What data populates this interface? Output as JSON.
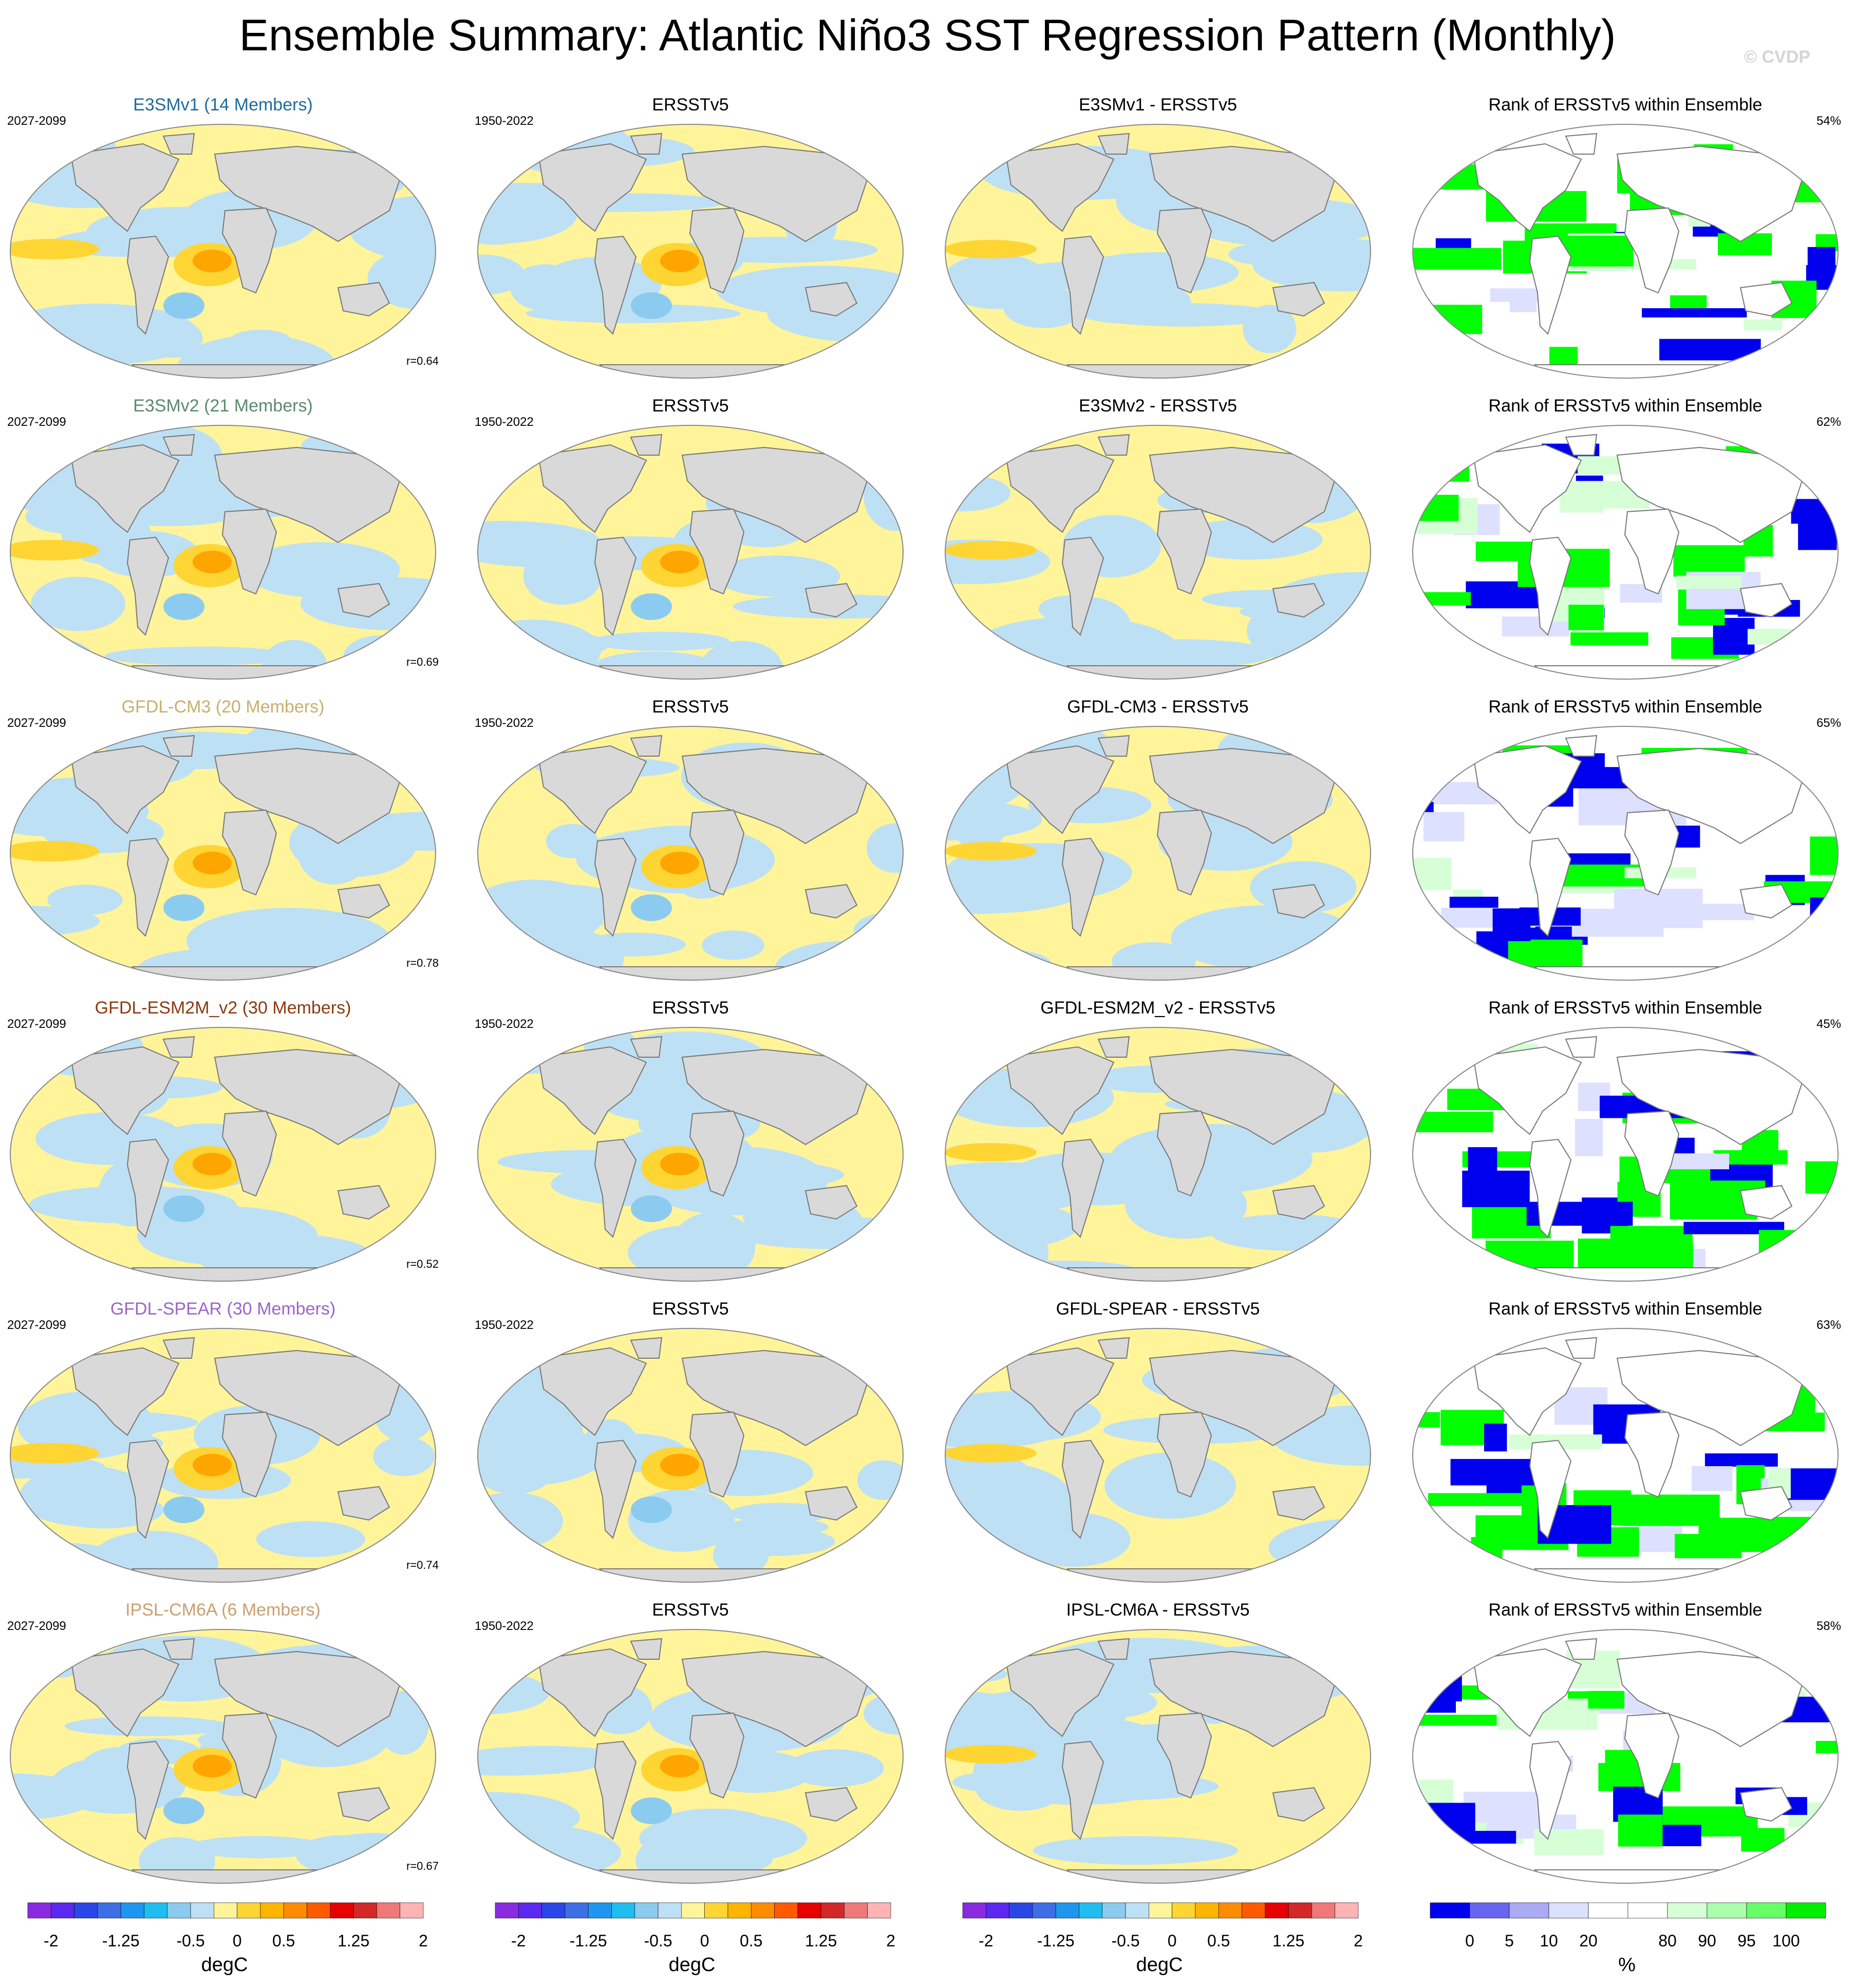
{
  "title": "Ensemble Summary: Atlantic Niño3 SST Regression Pattern (Monthly)",
  "copyright": "© CVDP",
  "colors": {
    "land": "#d9d9d9",
    "coast": "#777777",
    "warm_light": "#fff49a",
    "warm_mid": "#fed533",
    "warm_strong": "#ffa500",
    "cool_light": "#bee0f5",
    "cool_mid": "#8ccbf0",
    "rank_green": "#00ff00",
    "rank_blue": "#0000ee",
    "rank_lightblue": "#dde0ff",
    "rank_lightgreen": "#d6ffd6",
    "model_label_colors": [
      "#1f6c99",
      "#5b8a6d",
      "#c8b06d",
      "#8a3b10",
      "#9b65c9",
      "#c9a070"
    ]
  },
  "rows": [
    {
      "model_label": "E3SMv1 (14 Members)",
      "model_period": "2027-2099",
      "obs_label": "ERSSTv5",
      "obs_period": "1950-2022",
      "diff_label": "E3SMv1 - ERSSTv5",
      "rank_label": "Rank of ERSSTv5 within Ensemble",
      "rank_pct": "54%",
      "r_value": "r=0.64"
    },
    {
      "model_label": "E3SMv2 (21 Members)",
      "model_period": "2027-2099",
      "obs_label": "ERSSTv5",
      "obs_period": "1950-2022",
      "diff_label": "E3SMv2 - ERSSTv5",
      "rank_label": "Rank of ERSSTv5 within Ensemble",
      "rank_pct": "62%",
      "r_value": "r=0.69"
    },
    {
      "model_label": "GFDL-CM3 (20 Members)",
      "model_period": "2027-2099",
      "obs_label": "ERSSTv5",
      "obs_period": "1950-2022",
      "diff_label": "GFDL-CM3 - ERSSTv5",
      "rank_label": "Rank of ERSSTv5 within Ensemble",
      "rank_pct": "65%",
      "r_value": "r=0.78"
    },
    {
      "model_label": "GFDL-ESM2M_v2 (30 Members)",
      "model_period": "2027-2099",
      "obs_label": "ERSSTv5",
      "obs_period": "1950-2022",
      "diff_label": "GFDL-ESM2M_v2 - ERSSTv5",
      "rank_label": "Rank of ERSSTv5 within Ensemble",
      "rank_pct": "45%",
      "r_value": "r=0.52"
    },
    {
      "model_label": "GFDL-SPEAR (30 Members)",
      "model_period": "2027-2099",
      "obs_label": "ERSSTv5",
      "obs_period": "1950-2022",
      "diff_label": "GFDL-SPEAR - ERSSTv5",
      "rank_label": "Rank of ERSSTv5 within Ensemble",
      "rank_pct": "63%",
      "r_value": "r=0.74"
    },
    {
      "model_label": "IPSL-CM6A (6 Members)",
      "model_period": "2027-2099",
      "obs_label": "ERSSTv5",
      "obs_period": "1950-2022",
      "diff_label": "IPSL-CM6A - ERSSTv5",
      "rank_label": "Rank of ERSSTv5 within Ensemble",
      "rank_pct": "58%",
      "r_value": "r=0.67"
    }
  ],
  "colorbars": {
    "sst": {
      "colors": [
        "#8a2be2",
        "#5a28f0",
        "#2a46e6",
        "#3c6ee6",
        "#1e96f0",
        "#1ebef0",
        "#8ccbf0",
        "#bee0f5",
        "#fff49a",
        "#fed533",
        "#ffb400",
        "#ff8c00",
        "#ff5a00",
        "#e60000",
        "#d22828",
        "#f07878",
        "#ffb4b4"
      ],
      "tick_labels": [
        "-2",
        "-1.25",
        "-0.5",
        "0",
        "0.5",
        "1.25",
        "2"
      ],
      "tick_positions": [
        1,
        4,
        7,
        9,
        11,
        14,
        17
      ],
      "unit": "degC"
    },
    "rank": {
      "colors": [
        "#0000ee",
        "#6666f0",
        "#aaaaf5",
        "#dde0ff",
        "#ffffff",
        "#ffffff",
        "#d6ffd6",
        "#aaffaa",
        "#66ff66",
        "#00ee00"
      ],
      "tick_labels": [
        "0",
        "5",
        "10",
        "20",
        "80",
        "90",
        "95",
        "100"
      ],
      "tick_positions": [
        1,
        2,
        3,
        4,
        6,
        7,
        8,
        9
      ],
      "unit": "%"
    }
  },
  "chart_data": [
    {
      "type": "heatmap",
      "panel": "model ensemble-mean Atlantic Niño3 SST regression",
      "columns_rows": 6,
      "unit": "degC",
      "range": [
        -2,
        2
      ]
    },
    {
      "type": "heatmap",
      "panel": "ERSSTv5 observed regression",
      "unit": "degC",
      "range": [
        -2,
        2
      ]
    },
    {
      "type": "heatmap",
      "panel": "model minus ERSSTv5 difference",
      "unit": "degC",
      "range": [
        -2,
        2
      ]
    },
    {
      "type": "heatmap",
      "panel": "rank of ERSSTv5 within ensemble",
      "unit": "%",
      "range": [
        0,
        100
      ],
      "rank_pcts": [
        "54%",
        "62%",
        "65%",
        "45%",
        "63%",
        "58%"
      ],
      "pattern_correlations": [
        "r=0.64",
        "r=0.69",
        "r=0.78",
        "r=0.52",
        "r=0.74",
        "r=0.67"
      ]
    }
  ]
}
